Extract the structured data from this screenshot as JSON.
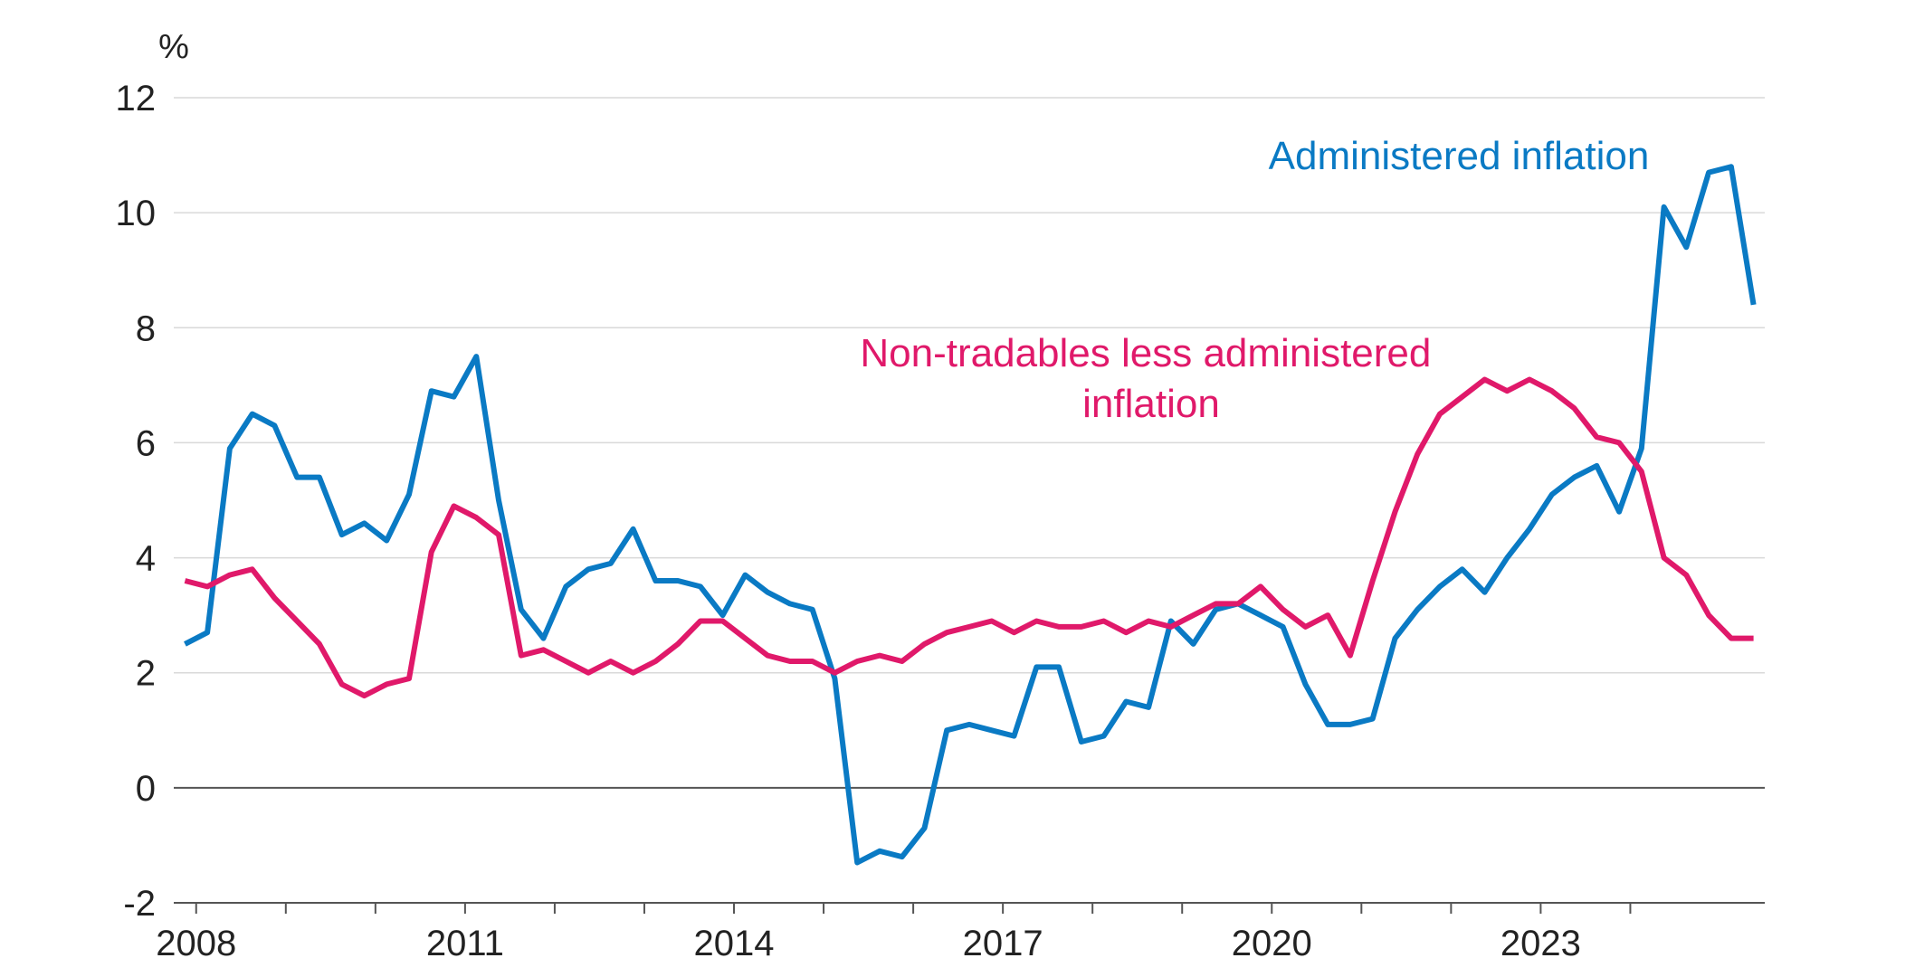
{
  "chart_data": {
    "type": "line",
    "ylabel": "%",
    "ylim": [
      -2,
      12
    ],
    "yticks": [
      -2,
      0,
      2,
      4,
      6,
      8,
      10,
      12
    ],
    "xlim": [
      2007.75,
      2025.5
    ],
    "xticks": [
      2008,
      2011,
      2014,
      2017,
      2020,
      2023
    ],
    "x_minor_ticks": [
      2009,
      2010,
      2012,
      2013,
      2015,
      2016,
      2018,
      2019,
      2021,
      2022,
      2024
    ],
    "grid": true,
    "legend": "inline labels",
    "x": [
      2007.875,
      2008.125,
      2008.375,
      2008.625,
      2008.875,
      2009.125,
      2009.375,
      2009.625,
      2009.875,
      2010.125,
      2010.375,
      2010.625,
      2010.875,
      2011.125,
      2011.375,
      2011.625,
      2011.875,
      2012.125,
      2012.375,
      2012.625,
      2012.875,
      2013.125,
      2013.375,
      2013.625,
      2013.875,
      2014.125,
      2014.375,
      2014.625,
      2014.875,
      2015.125,
      2015.375,
      2015.625,
      2015.875,
      2016.125,
      2016.375,
      2016.625,
      2016.875,
      2017.125,
      2017.375,
      2017.625,
      2017.875,
      2018.125,
      2018.375,
      2018.625,
      2018.875,
      2019.125,
      2019.375,
      2019.625,
      2019.875,
      2020.125,
      2020.375,
      2020.625,
      2020.875,
      2021.125,
      2021.375,
      2021.625,
      2021.875,
      2022.125,
      2022.375,
      2022.625,
      2022.875,
      2023.125,
      2023.375,
      2023.625,
      2023.875,
      2024.125,
      2024.375,
      2024.625,
      2024.875,
      2025.125,
      2025.375
    ],
    "series": [
      {
        "name": "Administered inflation",
        "color": "#0a7ac4",
        "values": [
          2.5,
          2.7,
          5.9,
          6.5,
          6.3,
          5.4,
          5.4,
          4.4,
          4.6,
          4.3,
          5.1,
          6.9,
          6.8,
          7.5,
          5.0,
          3.1,
          2.6,
          3.5,
          3.8,
          3.9,
          4.5,
          3.6,
          3.6,
          3.5,
          3.0,
          3.7,
          3.4,
          3.2,
          3.1,
          1.9,
          -1.3,
          -1.1,
          -1.2,
          -0.7,
          1.0,
          1.1,
          1.0,
          0.9,
          2.1,
          2.1,
          0.8,
          0.9,
          1.5,
          1.4,
          2.9,
          2.5,
          3.1,
          3.2,
          3.0,
          2.8,
          1.8,
          1.1,
          1.1,
          1.2,
          2.6,
          3.1,
          3.5,
          3.8,
          3.4,
          4.0,
          4.5,
          5.1,
          5.4,
          5.6,
          4.8,
          5.9,
          10.1,
          9.4,
          10.7,
          10.8,
          8.4
        ]
      },
      {
        "name": "Non-tradables less administered inflation",
        "color": "#e0196a",
        "values": [
          3.6,
          3.5,
          3.7,
          3.8,
          3.3,
          2.9,
          2.5,
          1.8,
          1.6,
          1.8,
          1.9,
          4.1,
          4.9,
          4.7,
          4.4,
          2.3,
          2.4,
          2.2,
          2.0,
          2.2,
          2.0,
          2.2,
          2.5,
          2.9,
          2.9,
          2.6,
          2.3,
          2.2,
          2.2,
          2.0,
          2.2,
          2.3,
          2.2,
          2.5,
          2.7,
          2.8,
          2.9,
          2.7,
          2.9,
          2.8,
          2.8,
          2.9,
          2.7,
          2.9,
          2.8,
          3.0,
          3.2,
          3.2,
          3.5,
          3.1,
          2.8,
          3.0,
          2.3,
          3.6,
          4.8,
          5.8,
          6.5,
          6.8,
          7.1,
          6.9,
          7.1,
          6.9,
          6.6,
          6.1,
          6.0,
          5.5,
          4.0,
          3.7,
          3.0,
          2.6,
          2.6
        ]
      }
    ],
    "annotations": {
      "administered": [
        "Administered inflation"
      ],
      "nontradables": [
        "Non-tradables less administered",
        "inflation"
      ]
    }
  }
}
